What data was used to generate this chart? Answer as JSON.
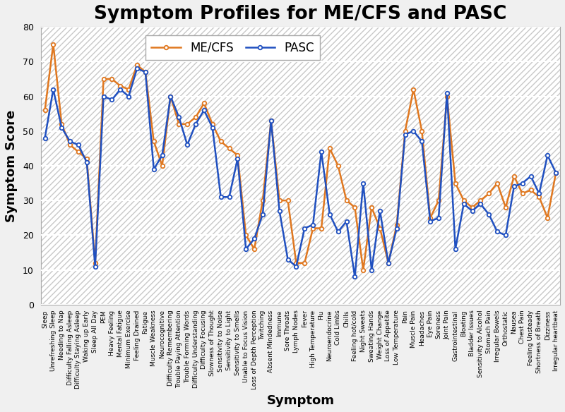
{
  "title": "Symptom Profiles for ME/CFS and PASC",
  "xlabel": "Symptom",
  "ylabel": "Symptom Score",
  "ylim": [
    0,
    80
  ],
  "yticks": [
    0,
    10,
    20,
    30,
    40,
    50,
    60,
    70,
    80
  ],
  "symptoms": [
    "Sleep",
    "Unrefreshing Sleep",
    "Needing to Nap",
    "Difficulty Falling Asleep",
    "Difficulty Staying Asleep",
    "Waking up Early",
    "Sleep All Day",
    "PEM",
    "Heavy Feeling",
    "Mental Fatigue",
    "Minimum Exercise",
    "Feeling Drained",
    "Fatigue",
    "Muscle Weakness",
    "Neurocognitive",
    "Difficulty Remembering",
    "Trouble Paying Attention",
    "Trouble Forming Words",
    "Difficulty Understanding",
    "Difficulty Focusing",
    "Slowness of Thought",
    "Sensitivity to Noise",
    "Sensitivity to Light",
    "Sensitivity to Smells",
    "Unable to Focus Vision",
    "Loss of Depth Perception",
    "Twitching",
    "Absent Mindedness",
    "Immune",
    "Sore Throats",
    "Lymph Nodes",
    "Fever",
    "High Temperature",
    "Flu",
    "Neuroendocrine",
    "Cold Limbs",
    "Chills",
    "Feeling hot/cold",
    "Night Sweats",
    "Sweating Hands",
    "Weight Change",
    "Loss of Appetite",
    "Low Temperature",
    "Pain",
    "Muscle Pain",
    "Headaches",
    "Eye Pain",
    "Soreness",
    "Joint Pain",
    "Gastrointestinal",
    "Bloating",
    "Bladder Issues",
    "Sensitivity to Alcohol",
    "Stomach Pain",
    "Irregular Bowels",
    "Orthostatic",
    "Nausea",
    "Chest Pain",
    "Feeling Unsteady",
    "Shortness of Breath",
    "Dizziness",
    "Irregular heartbeat"
  ],
  "mecfs": [
    56,
    75,
    52,
    46,
    44,
    42,
    12,
    65,
    65,
    63,
    62,
    69,
    67,
    47,
    40,
    60,
    52,
    52,
    54,
    58,
    52,
    47,
    45,
    43,
    20,
    16,
    30,
    53,
    30,
    30,
    12,
    12,
    22,
    22,
    45,
    40,
    30,
    28,
    10,
    28,
    22,
    12,
    23,
    50,
    62,
    50,
    25,
    30,
    60,
    35,
    30,
    28,
    30,
    32,
    35,
    28,
    37,
    32,
    33,
    31,
    25,
    38
  ],
  "pasc": [
    48,
    62,
    51,
    47,
    46,
    41,
    11,
    60,
    59,
    62,
    60,
    68,
    67,
    39,
    43,
    60,
    54,
    46,
    52,
    56,
    51,
    31,
    31,
    42,
    16,
    19,
    26,
    53,
    27,
    13,
    11,
    22,
    23,
    44,
    26,
    21,
    24,
    8,
    35,
    10,
    27,
    12,
    22,
    49,
    50,
    47,
    24,
    25,
    61,
    16,
    29,
    27,
    29,
    26,
    21,
    20,
    34,
    35,
    37,
    32,
    43,
    38
  ],
  "mecfs_color": "#E07820",
  "pasc_color": "#2050C0",
  "plot_bg_color": "#FFFFFF",
  "fig_bg_color": "#F0F0F0",
  "hatch_color": "#C8C8C8",
  "grid_color": "#FFFFFF",
  "title_fontsize": 19,
  "label_fontsize": 13,
  "tick_fontsize": 6.5,
  "ytick_fontsize": 9,
  "legend_fontsize": 12
}
